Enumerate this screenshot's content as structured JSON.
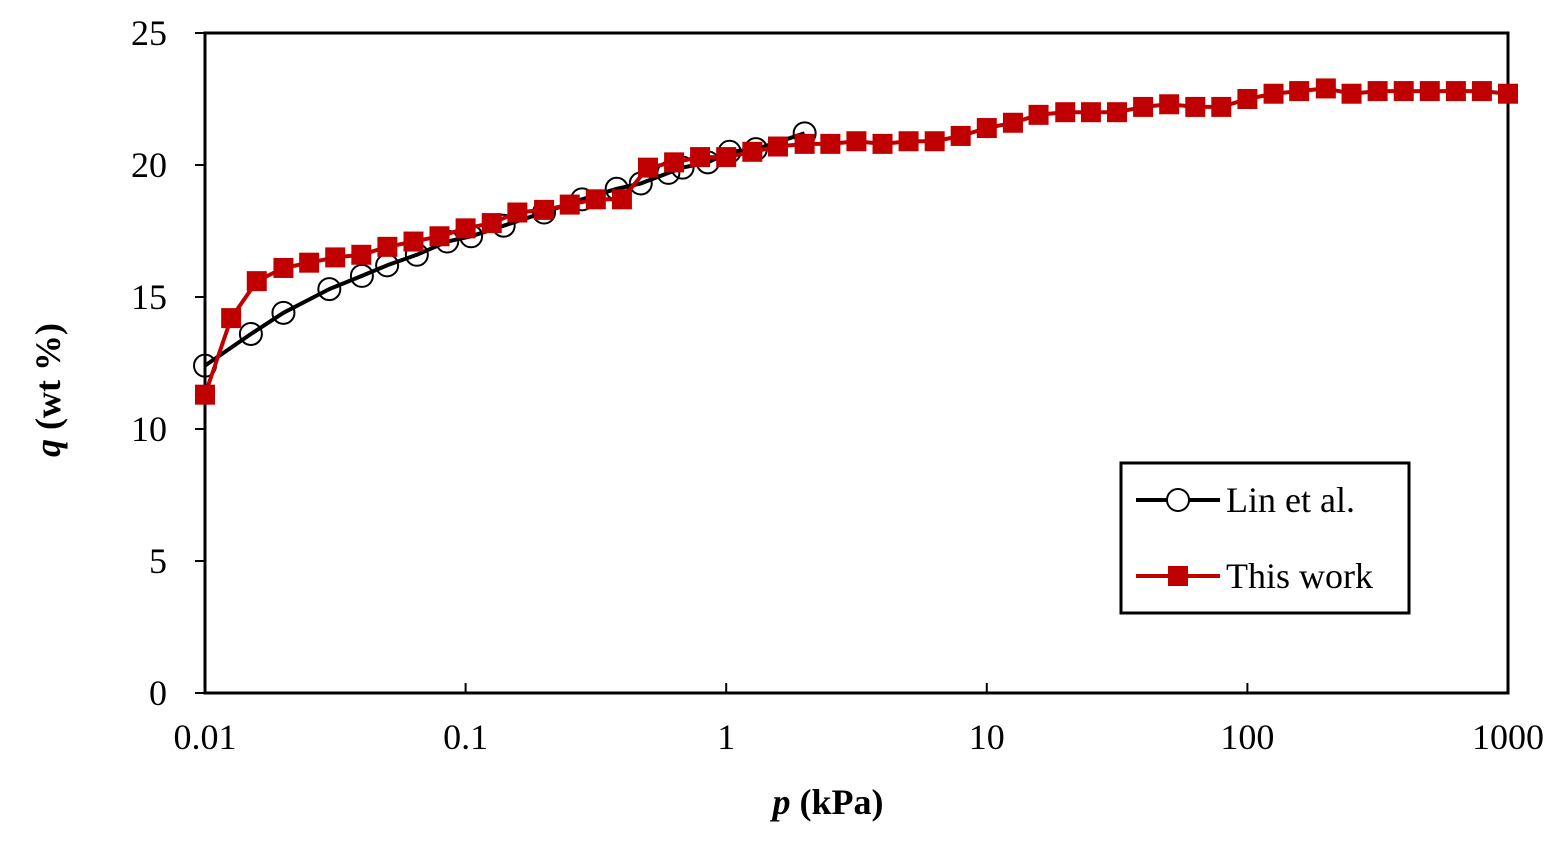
{
  "chart_data": {
    "type": "line",
    "xlabel": {
      "var": "p",
      "unit": " (kPa)"
    },
    "ylabel": {
      "var": "q",
      "unit": " (wt %)"
    },
    "x_scale": "log",
    "xlim": [
      0.01,
      1000
    ],
    "ylim": [
      0,
      25
    ],
    "xticks": [
      "0.01",
      "0.1",
      "1",
      "10",
      "100",
      "1000"
    ],
    "xtick_values": [
      0.01,
      0.1,
      1,
      10,
      100,
      1000
    ],
    "yticks": [
      "0",
      "5",
      "10",
      "15",
      "20",
      "25"
    ],
    "ytick_values": [
      0,
      5,
      10,
      15,
      20,
      25
    ],
    "grid": false,
    "legend_position": "lower-right",
    "series": [
      {
        "name": "Lin et al.",
        "color": "#000000",
        "marker": "open-circle",
        "x": [
          0.01,
          0.015,
          0.02,
          0.03,
          0.04,
          0.05,
          0.065,
          0.085,
          0.105,
          0.14,
          0.2,
          0.28,
          0.38,
          0.47,
          0.6,
          0.68,
          0.85,
          1.03,
          1.3,
          2.0
        ],
        "y": [
          12.4,
          13.6,
          14.4,
          15.3,
          15.8,
          16.2,
          16.6,
          17.1,
          17.3,
          17.7,
          18.2,
          18.7,
          19.1,
          19.3,
          19.7,
          19.9,
          20.1,
          20.5,
          20.6,
          21.2
        ]
      },
      {
        "name": "This work",
        "color": "#c00000",
        "marker": "filled-square",
        "x": [
          0.01,
          0.0126,
          0.0158,
          0.02,
          0.0251,
          0.0316,
          0.0398,
          0.0501,
          0.0631,
          0.0794,
          0.1,
          0.126,
          0.158,
          0.2,
          0.251,
          0.316,
          0.398,
          0.501,
          0.631,
          0.794,
          1.0,
          1.26,
          1.58,
          2.0,
          2.51,
          3.16,
          3.98,
          5.01,
          6.31,
          7.94,
          10,
          12.6,
          15.8,
          20,
          25.1,
          31.6,
          39.8,
          50.1,
          63.1,
          79.4,
          100,
          126,
          158,
          200,
          251,
          316,
          398,
          501,
          631,
          794,
          1000
        ],
        "y": [
          11.3,
          14.2,
          15.6,
          16.1,
          16.3,
          16.5,
          16.6,
          16.9,
          17.1,
          17.3,
          17.6,
          17.8,
          18.2,
          18.3,
          18.5,
          18.7,
          18.7,
          19.9,
          20.1,
          20.3,
          20.3,
          20.5,
          20.7,
          20.8,
          20.8,
          20.9,
          20.8,
          20.9,
          20.9,
          21.1,
          21.4,
          21.6,
          21.9,
          22.0,
          22.0,
          22.0,
          22.2,
          22.3,
          22.2,
          22.2,
          22.5,
          22.7,
          22.8,
          22.9,
          22.7,
          22.8,
          22.8,
          22.8,
          22.8,
          22.8,
          22.7
        ]
      }
    ]
  }
}
